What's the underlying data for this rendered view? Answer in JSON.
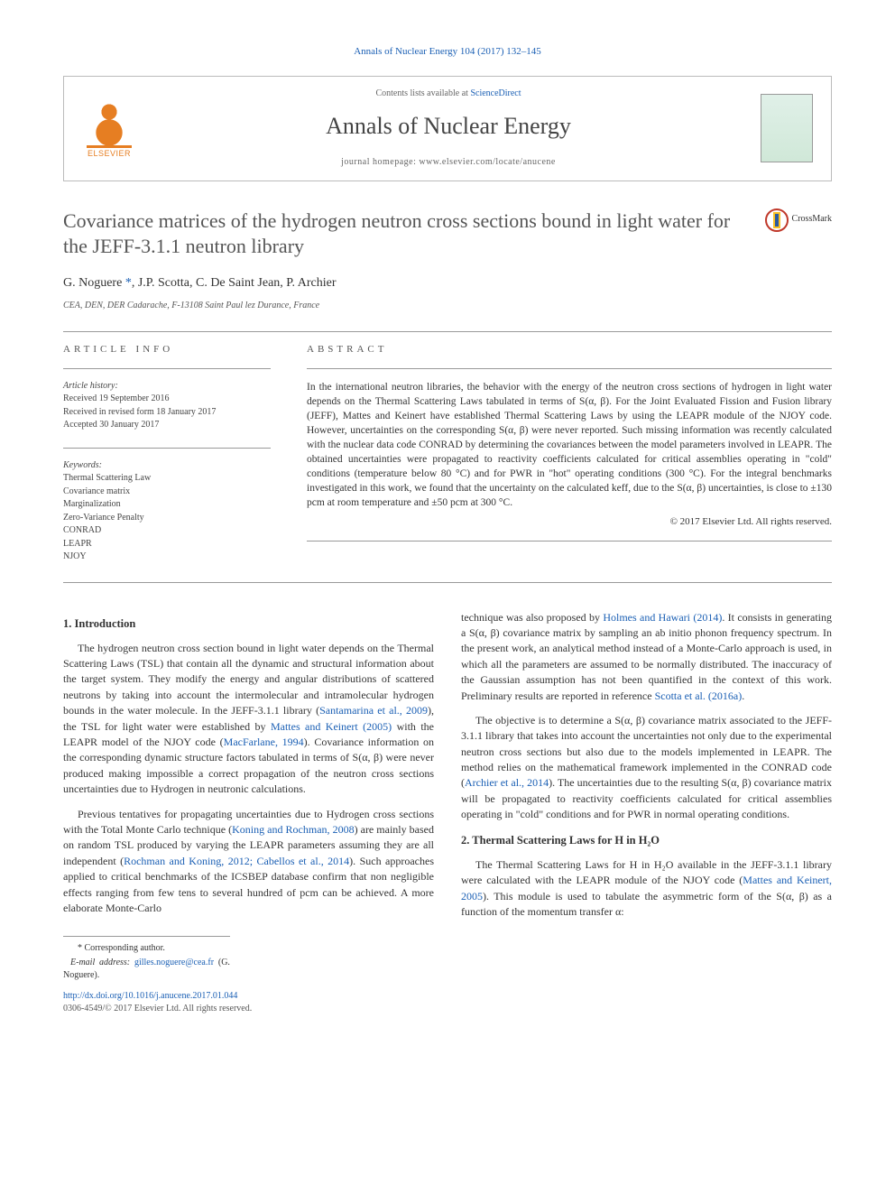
{
  "header": {
    "top_citation": "Annals of Nuclear Energy 104 (2017) 132–145",
    "contents_prefix": "Contents lists available at ",
    "contents_link": "ScienceDirect",
    "journal_name": "Annals of Nuclear Energy",
    "homepage_prefix": "journal homepage: ",
    "homepage_url": "www.elsevier.com/locate/anucene",
    "elsevier_label": "ELSEVIER"
  },
  "crossmark": {
    "label": "CrossMark"
  },
  "article": {
    "title": "Covariance matrices of the hydrogen neutron cross sections bound in light water for the JEFF-3.1.1 neutron library",
    "authors_html": "G. Noguere *, J.P. Scotta, C. De Saint Jean, P. Archier",
    "author_1": "G. Noguere",
    "author_1_marker": "*",
    "author_2": ", J.P. Scotta, C. De Saint Jean, P. Archier",
    "affiliation": "CEA, DEN, DER Cadarache, F-13108 Saint Paul lez Durance, France"
  },
  "info": {
    "heading": "ARTICLE INFO",
    "history_label": "Article history:",
    "received": "Received 19 September 2016",
    "revised": "Received in revised form 18 January 2017",
    "accepted": "Accepted 30 January 2017",
    "keywords_label": "Keywords:",
    "keywords": [
      "Thermal Scattering Law",
      "Covariance matrix",
      "Marginalization",
      "Zero-Variance Penalty",
      "CONRAD",
      "LEAPR",
      "NJOY"
    ]
  },
  "abstract": {
    "heading": "ABSTRACT",
    "text": "In the international neutron libraries, the behavior with the energy of the neutron cross sections of hydrogen in light water depends on the Thermal Scattering Laws tabulated in terms of S(α, β). For the Joint Evaluated Fission and Fusion library (JEFF), Mattes and Keinert have established Thermal Scattering Laws by using the LEAPR module of the NJOY code. However, uncertainties on the corresponding S(α, β) were never reported. Such missing information was recently calculated with the nuclear data code CONRAD by determining the covariances between the model parameters involved in LEAPR. The obtained uncertainties were propagated to reactivity coefficients calculated for critical assemblies operating in \"cold\" conditions (temperature below 80 °C) and for PWR in \"hot\" operating conditions (300 °C). For the integral benchmarks investigated in this work, we found that the uncertainty on the calculated keff, due to the S(α, β) uncertainties, is close to ±130 pcm at room temperature and ±50 pcm at 300 °C.",
    "copyright": "© 2017 Elsevier Ltd. All rights reserved."
  },
  "body": {
    "s1_heading": "1. Introduction",
    "s1_p1a": "The hydrogen neutron cross section bound in light water depends on the Thermal Scattering Laws (TSL) that contain all the dynamic and structural information about the target system. They modify the energy and angular distributions of scattered neutrons by taking into account the intermolecular and intramolecular hydrogen bounds in the water molecule. In the JEFF-3.1.1 library (",
    "ref_santamarina": "Santamarina et al., 2009",
    "s1_p1b": "), the TSL for light water were established by ",
    "ref_mattes": "Mattes and Keinert (2005)",
    "s1_p1c": " with the LEAPR model of the NJOY code (",
    "ref_macfarlane": "MacFarlane, 1994",
    "s1_p1d": "). Covariance information on the corresponding dynamic structure factors tabulated in terms of S(α, β) were never produced making impossible a correct propagation of the neutron cross sections uncertainties due to Hydrogen in neutronic calculations.",
    "s1_p2a": "Previous tentatives for propagating uncertainties due to Hydrogen cross sections with the Total Monte Carlo technique (",
    "ref_koning": "Koning and Rochman, 2008",
    "s1_p2b": ") are mainly based on random TSL produced by varying the LEAPR parameters assuming they are all independent (",
    "ref_rochman": "Rochman and Koning, 2012; Cabellos et al., 2014",
    "s1_p2c": "). Such approaches applied to critical benchmarks of the ICSBEP database confirm that non negligible effects ranging from few tens to several hundred of pcm can be achieved. A more elaborate Monte-Carlo",
    "s1_p2d": "technique was also proposed by ",
    "ref_holmes": "Holmes and Hawari (2014)",
    "s1_p2e": ". It consists in generating a S(α, β) covariance matrix by sampling an ab initio phonon frequency spectrum. In the present work, an analytical method instead of a Monte-Carlo approach is used, in which all the parameters are assumed to be normally distributed. The inaccuracy of the Gaussian assumption has not been quantified in the context of this work. Preliminary results are reported in reference ",
    "ref_scotta": "Scotta et al. (2016a)",
    "s1_p2f": ".",
    "s1_p3a": "The objective is to determine a S(α, β) covariance matrix associated to the JEFF-3.1.1 library that takes into account the uncertainties not only due to the experimental neutron cross sections but also due to the models implemented in LEAPR. The method relies on the mathematical framework implemented in the CONRAD code (",
    "ref_archier": "Archier et al., 2014",
    "s1_p3b": "). The uncertainties due to the resulting S(α, β) covariance matrix will be propagated to reactivity coefficients calculated for critical assemblies operating in \"cold\" conditions and for PWR in normal operating conditions.",
    "s2_heading": "2. Thermal Scattering Laws for H in H₂O",
    "s2_p1a": "The Thermal Scattering Laws for H in H₂O available in the JEFF-3.1.1 library were calculated with the LEAPR module of the NJOY code (",
    "ref_mattes2": "Mattes and Keinert, 2005",
    "s2_p1b": "). This module is used to tabulate the asymmetric form of the S(α, β) as a function of the momentum transfer α:"
  },
  "footnote": {
    "corresponding": "* Corresponding author.",
    "email_label": "E-mail address: ",
    "email": "gilles.noguere@cea.fr",
    "email_suffix": " (G. Noguere)."
  },
  "doi": {
    "url": "http://dx.doi.org/10.1016/j.anucene.2017.01.044",
    "issn": "0306-4549/© 2017 Elsevier Ltd. All rights reserved."
  }
}
